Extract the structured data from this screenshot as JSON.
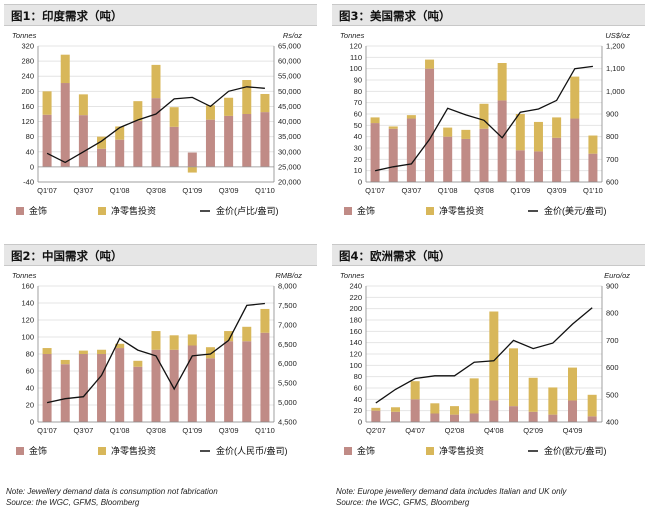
{
  "colors": {
    "jewellery": "#c08b86",
    "investment": "#d8b75a",
    "price": "#111111",
    "grid": "#e4e4e4",
    "plot_bg": "#ffffff"
  },
  "legend": {
    "jewellery": "金饰",
    "investment": "净零售投资"
  },
  "chart_data": [
    {
      "id": "india",
      "type": "bar",
      "stacked": true,
      "title": "图1：印度需求（吨）",
      "ylabel": "Tonnes",
      "y2label": "Rs/oz",
      "price_legend": "金价(卢比/盎司)",
      "ylim": [
        -40,
        320
      ],
      "yticks": [
        -40,
        0,
        40,
        80,
        120,
        160,
        200,
        240,
        280,
        320
      ],
      "y2lim": [
        20000,
        65000
      ],
      "y2ticks": [
        "20,000",
        "25,000",
        "30,000",
        "35,000",
        "40,000",
        "45,000",
        "50,000",
        "55,000",
        "60,000",
        "65,000"
      ],
      "x_tick_labels": [
        {
          "i": 0,
          "label": "Q1'07"
        },
        {
          "i": 2,
          "label": "Q3'07"
        },
        {
          "i": 4,
          "label": "Q1'08"
        },
        {
          "i": 6,
          "label": "Q3'08"
        },
        {
          "i": 8,
          "label": "Q1'09"
        },
        {
          "i": 10,
          "label": "Q3'09"
        },
        {
          "i": 12,
          "label": "Q1'10"
        }
      ],
      "categories": [
        "Q1'07",
        "Q2'07",
        "Q3'07",
        "Q4'07",
        "Q1'08",
        "Q2'08",
        "Q3'08",
        "Q4'08",
        "Q1'09",
        "Q2'09",
        "Q3'09",
        "Q4'09",
        "Q1'10"
      ],
      "series": [
        {
          "name": "金饰",
          "values": [
            138,
            222,
            137,
            48,
            72,
            122,
            182,
            106,
            38,
            125,
            135,
            140,
            145
          ]
        },
        {
          "name": "净零售投资",
          "values": [
            62,
            75,
            55,
            32,
            35,
            52,
            88,
            52,
            -15,
            38,
            48,
            90,
            48
          ]
        },
        {
          "name": "金价(卢比/盎司)",
          "axis": "right",
          "values": [
            29500,
            26500,
            30000,
            33500,
            38000,
            40500,
            42500,
            47500,
            48000,
            45000,
            50000,
            51500,
            51000
          ]
        }
      ]
    },
    {
      "id": "usa",
      "type": "bar",
      "stacked": true,
      "title": "图3：美国需求（吨）",
      "ylabel": "Tonnes",
      "y2label": "US$/oz",
      "price_legend": "金价(美元/盎司)",
      "ylim": [
        0,
        120
      ],
      "yticks": [
        0,
        10,
        20,
        30,
        40,
        50,
        60,
        70,
        80,
        90,
        100,
        110,
        120
      ],
      "y2lim": [
        600,
        1200
      ],
      "y2ticks": [
        "600",
        "700",
        "800",
        "900",
        "1,000",
        "1,100",
        "1,200"
      ],
      "x_tick_labels": [
        {
          "i": 0,
          "label": "Q1'07"
        },
        {
          "i": 2,
          "label": "Q3'07"
        },
        {
          "i": 4,
          "label": "Q1'08"
        },
        {
          "i": 6,
          "label": "Q3'08"
        },
        {
          "i": 8,
          "label": "Q1'09"
        },
        {
          "i": 10,
          "label": "Q3'09"
        },
        {
          "i": 12,
          "label": "Q1'10"
        }
      ],
      "categories": [
        "Q1'07",
        "Q2'07",
        "Q3'07",
        "Q4'07",
        "Q1'08",
        "Q2'08",
        "Q3'08",
        "Q4'08",
        "Q1'09",
        "Q2'09",
        "Q3'09",
        "Q4'09",
        "Q1'10"
      ],
      "series": [
        {
          "name": "金饰",
          "values": [
            52,
            47,
            56,
            100,
            40,
            38,
            47,
            72,
            28,
            27,
            39,
            56,
            25
          ]
        },
        {
          "name": "净零售投资",
          "values": [
            5,
            2,
            3,
            8,
            8,
            8,
            22,
            33,
            32,
            26,
            18,
            37,
            16
          ]
        },
        {
          "name": "金价(美元/盎司)",
          "axis": "right",
          "values": [
            650,
            667,
            680,
            788,
            925,
            896,
            872,
            795,
            908,
            922,
            960,
            1100,
            1110
          ]
        }
      ]
    },
    {
      "id": "china",
      "type": "bar",
      "stacked": true,
      "title": "图2：中国需求（吨）",
      "ylabel": "Tonnes",
      "y2label": "RMB/oz",
      "price_legend": "金价(人民币/盎司)",
      "ylim": [
        0,
        160
      ],
      "yticks": [
        0,
        20,
        40,
        60,
        80,
        100,
        120,
        140,
        160
      ],
      "y2lim": [
        4500,
        8000
      ],
      "y2ticks": [
        "4,500",
        "5,000",
        "5,500",
        "6,000",
        "6,500",
        "7,000",
        "7,500",
        "8,000"
      ],
      "x_tick_labels": [
        {
          "i": 0,
          "label": "Q1'07"
        },
        {
          "i": 2,
          "label": "Q3'07"
        },
        {
          "i": 4,
          "label": "Q1'08"
        },
        {
          "i": 6,
          "label": "Q3'08"
        },
        {
          "i": 8,
          "label": "Q1'09"
        },
        {
          "i": 10,
          "label": "Q3'09"
        },
        {
          "i": 12,
          "label": "Q1'10"
        }
      ],
      "categories": [
        "Q1'07",
        "Q2'07",
        "Q3'07",
        "Q4'07",
        "Q1'08",
        "Q2'08",
        "Q3'08",
        "Q4'08",
        "Q1'09",
        "Q2'09",
        "Q3'09",
        "Q4'09",
        "Q1'10"
      ],
      "series": [
        {
          "name": "金饰",
          "values": [
            80,
            68,
            80,
            80,
            87,
            65,
            85,
            85,
            90,
            75,
            95,
            95,
            105
          ]
        },
        {
          "name": "净零售投资",
          "values": [
            7,
            5,
            4,
            5,
            5,
            7,
            22,
            17,
            13,
            13,
            12,
            17,
            28
          ]
        },
        {
          "name": "金价(人民币/盎司)",
          "axis": "right",
          "values": [
            5000,
            5100,
            5150,
            5700,
            6650,
            6350,
            6200,
            5350,
            6200,
            6250,
            6600,
            7500,
            7550
          ]
        }
      ]
    },
    {
      "id": "europe",
      "type": "bar",
      "stacked": true,
      "title": "图4：欧洲需求（吨）",
      "ylabel": "Tonnes",
      "y2label": "Euro/oz",
      "price_legend": "金价(欧元/盎司)",
      "ylim": [
        0,
        240
      ],
      "yticks": [
        0,
        20,
        40,
        60,
        80,
        100,
        120,
        140,
        160,
        180,
        200,
        220,
        240
      ],
      "y2lim": [
        400,
        900
      ],
      "y2ticks": [
        "400",
        "500",
        "600",
        "700",
        "800",
        "900"
      ],
      "x_tick_labels": [
        {
          "i": 0,
          "label": "Q2'07"
        },
        {
          "i": 2,
          "label": "Q4'07"
        },
        {
          "i": 4,
          "label": "Q2'08"
        },
        {
          "i": 6,
          "label": "Q4'08"
        },
        {
          "i": 8,
          "label": "Q2'09"
        },
        {
          "i": 10,
          "label": "Q4'09"
        }
      ],
      "categories": [
        "Q2'07",
        "Q3'07",
        "Q4'07",
        "Q1'08",
        "Q2'08",
        "Q3'08",
        "Q4'08",
        "Q1'09",
        "Q2'09",
        "Q3'09",
        "Q4'09",
        "Q1'10"
      ],
      "series": [
        {
          "name": "金饰",
          "values": [
            20,
            18,
            40,
            15,
            13,
            15,
            38,
            28,
            18,
            13,
            38,
            10
          ]
        },
        {
          "name": "净零售投资",
          "values": [
            5,
            8,
            32,
            18,
            15,
            62,
            157,
            102,
            60,
            48,
            58,
            38
          ]
        },
        {
          "name": "金价(欧元/盎司)",
          "axis": "right",
          "values": [
            470,
            520,
            560,
            570,
            570,
            620,
            625,
            700,
            670,
            690,
            760,
            820
          ]
        }
      ]
    }
  ],
  "notes": {
    "left": [
      "Note: Jewellery demand data is consumption not fabrication",
      "Source: the WGC, GFMS, Bloomberg"
    ],
    "right": [
      "Note: Europe jewellery demand data includes Italian and UK only",
      "Source: the WGC, GFMS, Bloomberg"
    ]
  }
}
